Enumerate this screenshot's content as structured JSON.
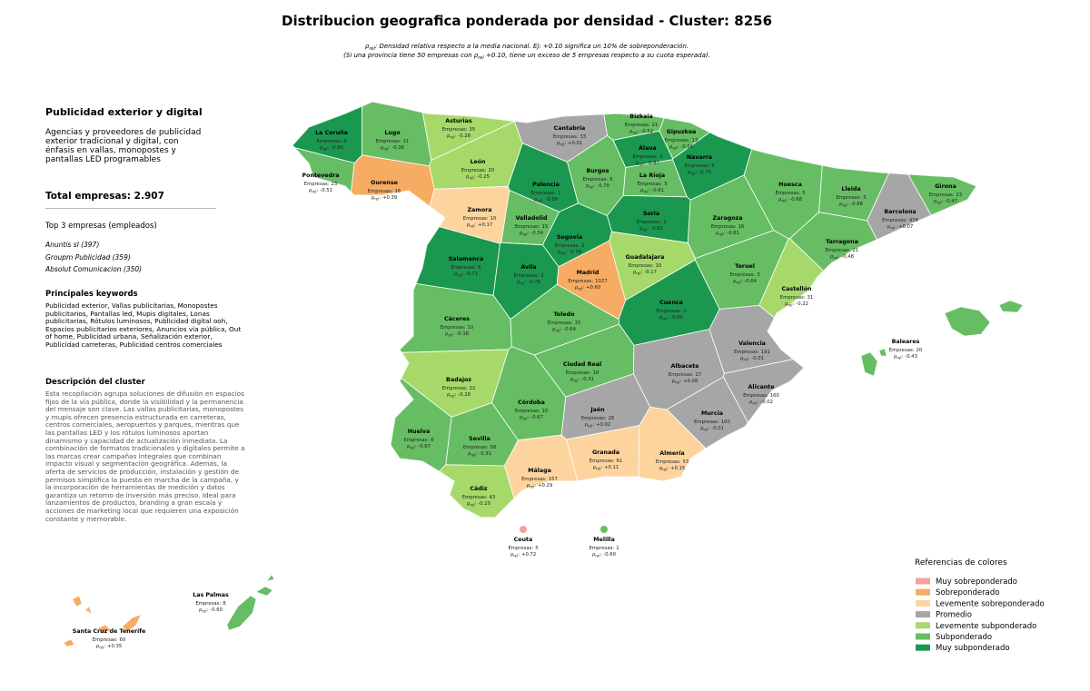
{
  "title": "Distribucion geografica ponderada por densidad - Cluster: 8256",
  "note": [
    [
      {
        "t": "ρ"
      },
      {
        "sub": "rel"
      },
      {
        "t": ": Densidad relativa respecto a la media nacional. Ej: +0.10 significa un 10% de sobreponderación."
      }
    ],
    [
      {
        "t": "(Si una provincia tiene 50 empresas con "
      },
      {
        "t": "ρ"
      },
      {
        "sub": "rel"
      },
      {
        "t": " +0.10, tiene un exceso de 5 empresas respecto a su cuota esperada)."
      }
    ]
  ],
  "panel": {
    "heading": "Publicidad exterior y digital",
    "summary": "Agencias y proveedores de publicidad exterior tradicional y digital, con énfasis en vallas, monopostes y pantallas LED programables",
    "total": "Total empresas: 2.907",
    "top_title": "Top 3 empresas (empleados)",
    "top": [
      "Anuntis sl (397)",
      "Groupm Publicidad (359)",
      "Absolut Comunicacion (350)"
    ],
    "keywords_title": "Principales keywords",
    "keywords": "Publicidad exterior, Vallas publicitarias, Monopostes publicitarios, Pantallas led, Mupis digitales, Lonas publicitarias, Rótulos luminosos, Publicidad digital ooh, Espacios publicitarios exteriores, Anuncios vía pública, Out of home, Publicidad urbana, Señalización exterior, Publicidad carreteras, Publicidad centros comerciales",
    "desc_title": "Descripción del cluster",
    "desc": "Esta recopilación agrupa soluciones de difusión en espacios fijos de la vía pública, donde la visibilidad y la permanencia del mensaje son clave. Las vallas publicitarias, monopostes y mupis ofrecen presencia estructurada en carreteras, centros comerciales, aeropuertos y parques, mientras que las pantallas LED y los rótulos luminosos aportan dinamismo y capacidad de actualización inmediata. La combinación de formatos tradicionales y digitales permite a las marcas crear campañas integrales que combinan impacto visual y segmentación geográfica. Además, la oferta de servicios de producción, instalación y gestión de permisos simplifica la puesta en marcha de la campaña, y la incorporación de herramientas de medición y datos garantiza un retorno de inversión más preciso. Ideal para lanzamientos de productos, branding a gran escala y acciones de marketing local que requieren una exposición constante y memorable."
  },
  "labels": {
    "empresas": "Empresas:",
    "rho": "ρ",
    "rho_sub": "rel",
    "rho_sep": ":"
  },
  "legend": {
    "title": "Referencias de colores",
    "items": [
      {
        "name": "Muy sobreponderado",
        "color": "#f4a29a"
      },
      {
        "name": "Sobreponderado",
        "color": "#f6ac62"
      },
      {
        "name": "Levemente sobreponderado",
        "color": "#fdd49e"
      },
      {
        "name": "Promedio",
        "color": "#a6a6a6"
      },
      {
        "name": "Levemente subponderado",
        "color": "#a6d96a"
      },
      {
        "name": "Subponderado",
        "color": "#66bd63"
      },
      {
        "name": "Muy subponderado",
        "color": "#1a9850"
      }
    ]
  },
  "provinces": [
    {
      "name": "La Coruña",
      "empresas": 6,
      "rho": "-0.80",
      "color": "#1a9850"
    },
    {
      "name": "Lugo",
      "empresas": 11,
      "rho": "-0.36",
      "color": "#66bd63"
    },
    {
      "name": "Asturias",
      "empresas": 35,
      "rho": "-0.28",
      "color": "#a6d96a"
    },
    {
      "name": "Cantabria",
      "empresas": 33,
      "rho": "+0.01",
      "color": "#a6a6a6"
    },
    {
      "name": "Bizkaia",
      "empresas": 21,
      "rho": "-0.52",
      "color": "#66bd63"
    },
    {
      "name": "Gipuzkoa",
      "empresas": 13,
      "rho": "-0.56",
      "color": "#66bd63"
    },
    {
      "name": "Álava",
      "empresas": 1,
      "rho": "-0.87",
      "color": "#1a9850"
    },
    {
      "name": "Navarra",
      "empresas": 8,
      "rho": "-0.75",
      "color": "#1a9850"
    },
    {
      "name": "La Rioja",
      "empresas": 5,
      "rho": "-0.61",
      "color": "#66bd63"
    },
    {
      "name": "Burgos",
      "empresas": 6,
      "rho": "-0.70",
      "color": "#66bd63"
    },
    {
      "name": "Palencia",
      "empresas": 1,
      "rho": "-0.88",
      "color": "#1a9850"
    },
    {
      "name": "León",
      "empresas": 20,
      "rho": "-0.25",
      "color": "#a6d96a"
    },
    {
      "name": "Pontevedra",
      "empresas": 23,
      "rho": "-0.51",
      "color": "#66bd63"
    },
    {
      "name": "Ourense",
      "empresas": 16,
      "rho": "+0.39",
      "color": "#f6ac62"
    },
    {
      "name": "Zamora",
      "empresas": 10,
      "rho": "+0.17",
      "color": "#fdd49e"
    },
    {
      "name": "Valladolid",
      "empresas": 15,
      "rho": "-0.34",
      "color": "#66bd63"
    },
    {
      "name": "Soria",
      "empresas": 1,
      "rho": "-0.82",
      "color": "#1a9850"
    },
    {
      "name": "Huesca",
      "empresas": 5,
      "rho": "-0.68",
      "color": "#66bd63"
    },
    {
      "name": "Lleida",
      "empresas": 5,
      "rho": "-0.66",
      "color": "#66bd63"
    },
    {
      "name": "Girona",
      "empresas": 23,
      "rho": "-0.47",
      "color": "#66bd63"
    },
    {
      "name": "Barcelona",
      "empresas": 474,
      "rho": "+0.07",
      "color": "#a6a6a6"
    },
    {
      "name": "Zaragoza",
      "empresas": 16,
      "rho": "-0.61",
      "color": "#66bd63"
    },
    {
      "name": "Tarragona",
      "empresas": 21,
      "rho": "-0.48",
      "color": "#66bd63"
    },
    {
      "name": "Segovia",
      "empresas": 2,
      "rho": "-0.78",
      "color": "#1a9850"
    },
    {
      "name": "Salamanca",
      "empresas": 6,
      "rho": "-0.71",
      "color": "#1a9850"
    },
    {
      "name": "Ávila",
      "empresas": 2,
      "rho": "-0.76",
      "color": "#1a9850"
    },
    {
      "name": "Madrid",
      "empresas": 1027,
      "rho": "+0.60",
      "color": "#f6ac62"
    },
    {
      "name": "Guadalajara",
      "empresas": 10,
      "rho": "-0.17",
      "color": "#a6d96a"
    },
    {
      "name": "Teruel",
      "empresas": 3,
      "rho": "-0.64",
      "color": "#66bd63"
    },
    {
      "name": "Castellón",
      "empresas": 31,
      "rho": "-0.22",
      "color": "#a6d96a"
    },
    {
      "name": "Cuenca",
      "empresas": 1,
      "rho": "-0.90",
      "color": "#1a9850"
    },
    {
      "name": "Cáceres",
      "empresas": 10,
      "rho": "-0.38",
      "color": "#66bd63"
    },
    {
      "name": "Toledo",
      "empresas": 15,
      "rho": "-0.64",
      "color": "#66bd63"
    },
    {
      "name": "Valencia",
      "empresas": 191,
      "rho": "-0.01",
      "color": "#a6a6a6"
    },
    {
      "name": "Badajoz",
      "empresas": 22,
      "rho": "-0.28",
      "color": "#a6d96a"
    },
    {
      "name": "Ciudad Real",
      "empresas": 18,
      "rho": "-0.31",
      "color": "#66bd63"
    },
    {
      "name": "Albacete",
      "empresas": 27,
      "rho": "+0.08",
      "color": "#a6a6a6"
    },
    {
      "name": "Alicante",
      "empresas": 160,
      "rho": "-0.02",
      "color": "#a6a6a6"
    },
    {
      "name": "Córdoba",
      "empresas": 10,
      "rho": "-0.67",
      "color": "#66bd63"
    },
    {
      "name": "Jaén",
      "empresas": 26,
      "rho": "+0.02",
      "color": "#a6a6a6"
    },
    {
      "name": "Murcia",
      "empresas": 100,
      "rho": "-0.01",
      "color": "#a6a6a6"
    },
    {
      "name": "Huelva",
      "empresas": 6,
      "rho": "-0.67",
      "color": "#66bd63"
    },
    {
      "name": "Sevilla",
      "empresas": 58,
      "rho": "-0.31",
      "color": "#66bd63"
    },
    {
      "name": "Granada",
      "empresas": 61,
      "rho": "+0.11",
      "color": "#fdd49e"
    },
    {
      "name": "Almería",
      "empresas": 53,
      "rho": "+0.15",
      "color": "#fdd49e"
    },
    {
      "name": "Málaga",
      "empresas": 157,
      "rho": "+0.29",
      "color": "#fdd49e"
    },
    {
      "name": "Cádiz",
      "empresas": 43,
      "rho": "-0.20",
      "color": "#a6d96a"
    },
    {
      "name": "Baleares",
      "empresas": 20,
      "rho": "-0.43",
      "color": "#66bd63"
    },
    {
      "name": "Ceuta",
      "empresas": 5,
      "rho": "+0.72",
      "color": "#f4a29a"
    },
    {
      "name": "Melilla",
      "empresas": 1,
      "rho": "-0.60",
      "color": "#66bd63"
    },
    {
      "name": "Las Palmas",
      "empresas": 8,
      "rho": "-0.60",
      "color": "#66bd63"
    },
    {
      "name": "Santa Cruz de Tenerife",
      "empresas": 60,
      "rho": "+0.35",
      "color": "#f6ac62"
    }
  ]
}
